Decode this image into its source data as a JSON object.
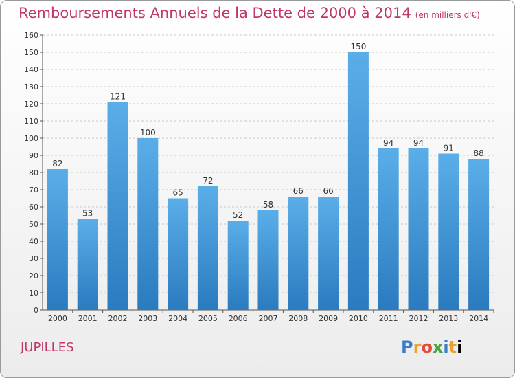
{
  "header": {
    "title": "Remboursements Annuels de la Dette de 2000 à 2014",
    "subtitle": "(en milliers d'€)"
  },
  "footer": {
    "commune": "JUPILLES",
    "logo_letters": [
      "P",
      "r",
      "o",
      "x",
      "i",
      "t",
      "i"
    ]
  },
  "colors": {
    "title": "#c0356b",
    "bar_top": "#5aaee8",
    "bar_bottom": "#2a7bbf",
    "grid": "#c8c8c8"
  },
  "chart_data": {
    "type": "bar",
    "categories": [
      "2000",
      "2001",
      "2002",
      "2003",
      "2004",
      "2005",
      "2006",
      "2007",
      "2008",
      "2009",
      "2010",
      "2011",
      "2012",
      "2013",
      "2014"
    ],
    "values": [
      82,
      53,
      121,
      100,
      65,
      72,
      52,
      58,
      66,
      66,
      150,
      94,
      94,
      91,
      88
    ],
    "data_labels": [
      "82",
      "53",
      "121",
      "100",
      "65",
      "72",
      "52",
      "58",
      "66",
      "66",
      "150",
      "94",
      "94",
      "91",
      "88"
    ],
    "yticks": [
      "0",
      "10",
      "20",
      "30",
      "40",
      "50",
      "60",
      "70",
      "80",
      "90",
      "100",
      "110",
      "120",
      "130",
      "140",
      "150",
      "160"
    ],
    "ylim": [
      0,
      160
    ],
    "grid": true
  }
}
